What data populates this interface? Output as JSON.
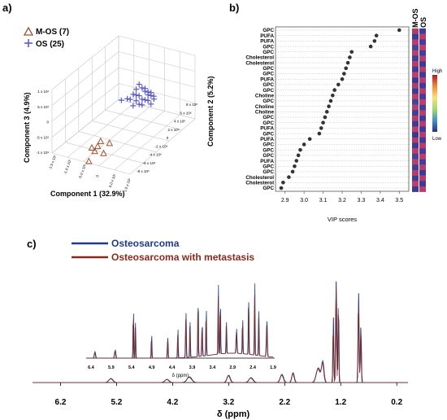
{
  "panel_labels": {
    "a": "a)",
    "b": "b)",
    "c": "c)"
  },
  "chart_data": [
    {
      "type": "scatter",
      "panel": "a",
      "xlabel": "Component 1 (32.9%)",
      "ylabel": "Component 3 (4.9%)",
      "zlabel": "Component 2 (5.2%)",
      "x_ticks": [
        "-1.5 x 10¹",
        "-1.0 x 10¹",
        "-5.0 x 10¹",
        "0",
        "5.0 x 10¹",
        "1.0 x 10¹"
      ],
      "y_ticks": [
        "1 x 10¹",
        "5 x 10¹",
        "0",
        "-5 x 10¹",
        "-1 x 10¹"
      ],
      "z_ticks": [
        "8 x 10⁶",
        "6 x 10⁶",
        "4 x 10⁶",
        "2 x 10⁶",
        "0",
        "-2 x 10⁶",
        "-4 x 10⁶",
        "-6 x 10⁶",
        "-8 x 10⁶"
      ],
      "series": [
        {
          "name": "M-OS (7)",
          "marker": "triangle",
          "color": "#a0522d",
          "points": [
            [
              -12,
              -1
            ],
            [
              -11,
              -3
            ],
            [
              -10,
              -2
            ],
            [
              -9,
              -1
            ],
            [
              -6,
              -4
            ],
            [
              -8,
              -6
            ],
            [
              -13,
              -5
            ]
          ]
        },
        {
          "name": "OS (25)",
          "marker": "plus",
          "color": "#5b5bc8",
          "points": [
            [
              1,
              6
            ],
            [
              2,
              7
            ],
            [
              3,
              8
            ],
            [
              4,
              5
            ],
            [
              5,
              7
            ],
            [
              6,
              6
            ],
            [
              4,
              9
            ],
            [
              3,
              4
            ],
            [
              5,
              3
            ],
            [
              6,
              2
            ],
            [
              7,
              4
            ],
            [
              8,
              3
            ],
            [
              7,
              1
            ],
            [
              8,
              2
            ],
            [
              9,
              0
            ],
            [
              8,
              -1
            ],
            [
              9,
              1
            ],
            [
              7,
              3
            ],
            [
              6,
              5
            ],
            [
              2,
              3
            ],
            [
              4,
              2
            ],
            [
              5,
              1
            ],
            [
              3,
              6
            ],
            [
              -2,
              8
            ],
            [
              0,
              7
            ]
          ]
        }
      ]
    },
    {
      "type": "scatter",
      "panel": "b",
      "xlabel": "VIP scores",
      "xlim": [
        2.85,
        3.55
      ],
      "x_ticks": [
        2.9,
        3.0,
        3.1,
        3.2,
        3.3,
        3.4,
        3.5
      ],
      "categories": [
        "GPC",
        "PUFA",
        "PUFA",
        "GPC",
        "GPC",
        "Cholesterol",
        "Cholesterol",
        "GPC",
        "GPC",
        "PUFA",
        "GPC",
        "GPC",
        "Choline",
        "GPC",
        "Choline",
        "Choline",
        "GPC",
        "GPC",
        "PUFA",
        "GPC",
        "PUFA",
        "GPC",
        "GPC",
        "GPC",
        "PUFA",
        "GPC",
        "GPC",
        "Cholesterol",
        "Cholesterol",
        "GPC"
      ],
      "values": [
        3.5,
        3.38,
        3.37,
        3.35,
        3.25,
        3.24,
        3.23,
        3.22,
        3.21,
        3.2,
        3.18,
        3.16,
        3.15,
        3.14,
        3.13,
        3.12,
        3.11,
        3.1,
        3.09,
        3.08,
        3.03,
        3.0,
        2.98,
        2.97,
        2.96,
        2.95,
        2.94,
        2.92,
        2.89,
        2.88
      ],
      "heatmap_columns": [
        "M-OS",
        "OS"
      ],
      "colorbar_labels": {
        "high": "High",
        "low": "Low"
      }
    },
    {
      "type": "line",
      "panel": "c",
      "xlabel": "δ (ppm)",
      "x_ticks": [
        6.2,
        5.2,
        4.2,
        3.2,
        2.2,
        1.2,
        0.2
      ],
      "xlim": [
        6.7,
        0.0
      ],
      "inset_xlabel": "δ (ppm)",
      "inset_x_ticks": [
        6.4,
        5.9,
        5.4,
        4.9,
        4.4,
        3.9,
        3.4,
        2.9,
        2.4,
        1.9
      ],
      "series": [
        {
          "name": "Osteosarcoma",
          "color": "#1f3a8a"
        },
        {
          "name": "Osteosarcoma with metastasis",
          "color": "#8b2a1a"
        }
      ]
    }
  ]
}
